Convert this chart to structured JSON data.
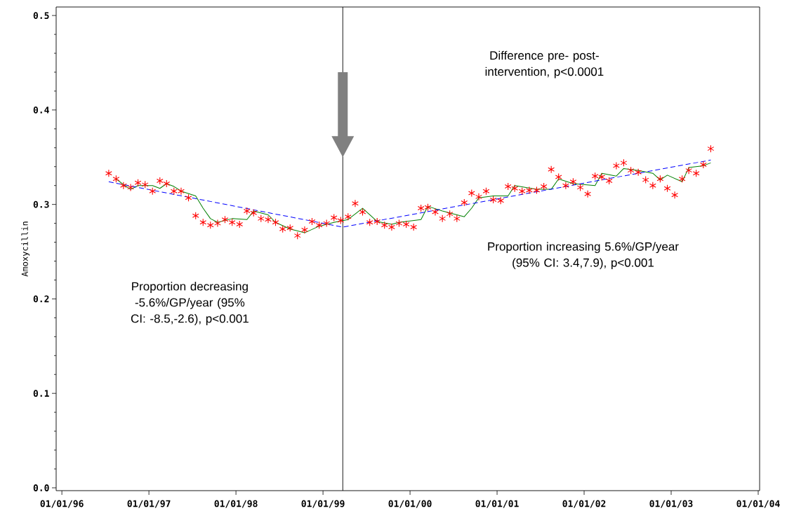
{
  "chart_data": {
    "type": "scatter",
    "ylabel": "Amoxycillin",
    "xlim": [
      "1995-12-08",
      "2004-01-07"
    ],
    "ylim": [
      -0.003,
      0.509
    ],
    "xticks": [
      {
        "value": "1996-01-01",
        "label": "01/01/96"
      },
      {
        "value": "1997-01-01",
        "label": "01/01/97"
      },
      {
        "value": "1998-01-01",
        "label": "01/01/98"
      },
      {
        "value": "1999-01-01",
        "label": "01/01/99"
      },
      {
        "value": "2000-01-01",
        "label": "01/01/00"
      },
      {
        "value": "2001-01-01",
        "label": "01/01/01"
      },
      {
        "value": "2002-01-01",
        "label": "01/01/02"
      },
      {
        "value": "2003-01-01",
        "label": "01/01/03"
      },
      {
        "value": "2004-01-01",
        "label": "01/01/04"
      }
    ],
    "yticks": [
      {
        "value": 0,
        "label": "0.0"
      },
      {
        "value": 0.1,
        "label": "0.1"
      },
      {
        "value": 0.2,
        "label": "0.2"
      },
      {
        "value": 0.3,
        "label": "0.3"
      },
      {
        "value": 0.4,
        "label": "0.4"
      },
      {
        "value": 0.5,
        "label": "0.5"
      }
    ],
    "x": [
      "1996-07-16",
      "1996-08-16",
      "1996-09-16",
      "1996-10-16",
      "1996-11-16",
      "1996-12-16",
      "1997-01-16",
      "1997-02-16",
      "1997-03-16",
      "1997-04-16",
      "1997-05-16",
      "1997-06-16",
      "1997-07-16",
      "1997-08-16",
      "1997-09-16",
      "1997-10-16",
      "1997-11-16",
      "1997-12-16",
      "1998-01-16",
      "1998-02-16",
      "1998-03-16",
      "1998-04-16",
      "1998-05-16",
      "1998-06-16",
      "1998-07-16",
      "1998-08-16",
      "1998-09-16",
      "1998-10-16",
      "1998-11-16",
      "1998-12-16",
      "1999-01-16",
      "1999-02-16",
      "1999-03-16",
      "1999-04-16",
      "1999-05-16",
      "1999-06-16",
      "1999-07-16",
      "1999-08-16",
      "1999-09-16",
      "1999-10-16",
      "1999-11-16",
      "1999-12-16",
      "2000-01-16",
      "2000-02-16",
      "2000-03-16",
      "2000-04-16",
      "2000-05-16",
      "2000-06-16",
      "2000-07-16",
      "2000-08-16",
      "2000-09-16",
      "2000-10-16",
      "2000-11-16",
      "2000-12-16",
      "2001-01-16",
      "2001-02-16",
      "2001-03-16",
      "2001-04-16",
      "2001-05-16",
      "2001-06-16",
      "2001-07-16",
      "2001-08-16",
      "2001-09-16",
      "2001-10-16",
      "2001-11-16",
      "2001-12-16",
      "2002-01-16",
      "2002-02-16",
      "2002-03-16",
      "2002-04-16",
      "2002-05-16",
      "2002-06-16",
      "2002-07-16",
      "2002-08-16",
      "2002-09-16",
      "2002-10-16",
      "2002-11-16",
      "2002-12-16",
      "2003-01-16",
      "2003-02-16",
      "2003-03-16",
      "2003-04-16",
      "2003-05-16",
      "2003-06-16"
    ],
    "series": [
      {
        "color": "#ff0000",
        "marker": "cross",
        "values": [
          0.333,
          0.327,
          0.32,
          0.318,
          0.323,
          0.321,
          0.314,
          0.325,
          0.322,
          0.314,
          0.314,
          0.307,
          0.288,
          0.281,
          0.278,
          0.28,
          0.284,
          0.281,
          0.279,
          0.293,
          0.291,
          0.285,
          0.284,
          0.281,
          0.274,
          0.275,
          0.267,
          0.273,
          0.282,
          0.278,
          0.28,
          0.286,
          0.283,
          0.287,
          0.301,
          0.292,
          0.281,
          0.282,
          0.278,
          0.276,
          0.28,
          0.279,
          0.276,
          0.296,
          0.297,
          0.292,
          0.285,
          0.29,
          0.285,
          0.302,
          0.312,
          0.308,
          0.314,
          0.305,
          0.304,
          0.319,
          0.317,
          0.314,
          0.315,
          0.315,
          0.319,
          0.337,
          0.329,
          0.32,
          0.324,
          0.318,
          0.311,
          0.33,
          0.329,
          0.325,
          0.341,
          0.344,
          0.336,
          0.334,
          0.326,
          0.32,
          0.327,
          0.317,
          0.31,
          0.327,
          0.336,
          0.333,
          0.342,
          0.359
        ]
      },
      {
        "type": "line",
        "color": "#008000",
        "line_style": "solid",
        "x": [
          "1996-08-16",
          "1996-09-16",
          "1996-10-16",
          "1996-11-16",
          "1997-01-16",
          "1997-02-16",
          "1997-03-16",
          "1997-04-16",
          "1997-05-16",
          "1997-07-16",
          "1997-08-16",
          "1997-09-16",
          "1997-10-16",
          "1997-12-16",
          "1998-02-16",
          "1998-03-16",
          "1998-05-16",
          "1998-06-16",
          "1998-08-16",
          "1998-10-16",
          "1998-12-16",
          "1999-02-16",
          "1999-04-16",
          "1999-06-16",
          "1999-08-16",
          "1999-10-16",
          "1999-11-16",
          "2000-02-16",
          "2000-03-16",
          "2000-05-16",
          "2000-08-16",
          "2000-09-16",
          "2000-10-16",
          "2000-12-16",
          "2001-02-16",
          "2001-03-16",
          "2001-06-16",
          "2001-08-16",
          "2001-09-16",
          "2001-11-16",
          "2002-02-16",
          "2002-03-16",
          "2002-05-16",
          "2002-06-16",
          "2002-08-16",
          "2002-10-16",
          "2002-11-16",
          "2002-12-16",
          "2003-02-16",
          "2003-03-16",
          "2003-05-16",
          "2003-06-16"
        ],
        "values": [
          0.327,
          0.321,
          0.316,
          0.32,
          0.32,
          0.317,
          0.322,
          0.319,
          0.314,
          0.309,
          0.296,
          0.285,
          0.281,
          0.285,
          0.284,
          0.293,
          0.289,
          0.281,
          0.274,
          0.27,
          0.277,
          0.281,
          0.284,
          0.296,
          0.282,
          0.279,
          0.281,
          0.284,
          0.298,
          0.293,
          0.287,
          0.296,
          0.307,
          0.309,
          0.309,
          0.32,
          0.316,
          0.316,
          0.327,
          0.322,
          0.32,
          0.333,
          0.33,
          0.338,
          0.336,
          0.333,
          0.326,
          0.331,
          0.324,
          0.339,
          0.341,
          0.344
        ]
      },
      {
        "type": "line",
        "color": "#0000ff",
        "line_style": "dashed",
        "x": [
          "1996-07-16",
          "1999-03-25",
          "2003-06-16"
        ],
        "values": [
          0.324,
          0.276,
          0.347
        ]
      }
    ],
    "ref_lines": [
      {
        "axis": "x",
        "value": "1999-03-25",
        "color": "#000000"
      }
    ],
    "annotations": [
      "Difference pre- post-intervention, p<0.0001",
      "Proportion decreasing -5.6%/GP/year (95% CI: -8.5,-2.6), p<0.001",
      "Proportion increasing 5.6%/GP/year (95% CI: 3.4,7.9), p<0.001"
    ]
  }
}
